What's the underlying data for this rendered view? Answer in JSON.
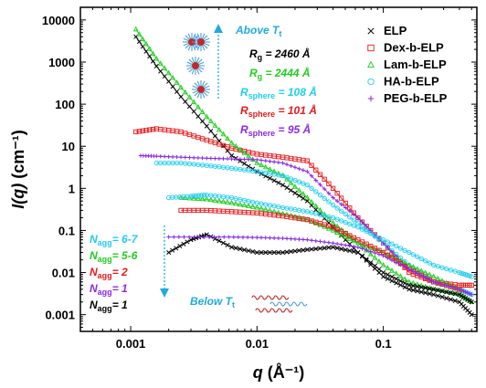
{
  "chart_data": {
    "type": "scatter",
    "xlabel": "q (Å⁻¹)",
    "ylabel": "I(q) (cm⁻¹)",
    "x_scale": "log",
    "y_scale": "log",
    "xlim": [
      0.0004,
      0.55
    ],
    "ylim": [
      0.0004,
      20000
    ],
    "x_ticks": [
      {
        "value": 0.001,
        "label": "0.001"
      },
      {
        "value": 0.01,
        "label": "0.01"
      },
      {
        "value": 0.1,
        "label": "0.1"
      }
    ],
    "y_ticks": [
      {
        "value": 0.001,
        "label": "0.001"
      },
      {
        "value": 0.01,
        "label": "0.01"
      },
      {
        "value": 0.1,
        "label": "0.1"
      },
      {
        "value": 1,
        "label": "1"
      },
      {
        "value": 10,
        "label": "10"
      },
      {
        "value": 100,
        "label": "100"
      },
      {
        "value": 1000,
        "label": "1000"
      },
      {
        "value": 10000,
        "label": "10000"
      }
    ],
    "grid": false,
    "legend_position": "top-right",
    "series": [
      {
        "name": "ELP",
        "marker": "x",
        "color": "#000000",
        "x": [
          0.0011,
          0.0016,
          0.0025,
          0.004,
          0.0063,
          0.01,
          0.016,
          0.025,
          0.04,
          0.063,
          0.1,
          0.16,
          0.25,
          0.4,
          0.5
        ],
        "y": [
          4000,
          800,
          150,
          30,
          6,
          2.5,
          1.2,
          0.5,
          0.12,
          0.03,
          0.008,
          0.004,
          0.003,
          0.002,
          0.001
        ]
      },
      {
        "name": "Dex-b-ELP",
        "marker": "square",
        "color": "#e41a1c",
        "x": [
          0.0011,
          0.0016,
          0.0025,
          0.004,
          0.0063,
          0.01,
          0.016,
          0.025,
          0.04,
          0.063,
          0.1,
          0.16,
          0.25,
          0.4,
          0.5
        ],
        "y": [
          22,
          26,
          22,
          14,
          9,
          6.5,
          5.5,
          4.5,
          1.0,
          0.2,
          0.05,
          0.01,
          0.006,
          0.005,
          0.005
        ]
      },
      {
        "name": "Lam-b-ELP",
        "marker": "triangle",
        "color": "#22cc22",
        "x": [
          0.0011,
          0.0016,
          0.0025,
          0.004,
          0.0063,
          0.01,
          0.016,
          0.025,
          0.04,
          0.063,
          0.1,
          0.16,
          0.25,
          0.4,
          0.5
        ],
        "y": [
          6000,
          1200,
          250,
          50,
          12,
          4,
          2,
          0.6,
          0.15,
          0.05,
          0.015,
          0.006,
          0.004,
          0.003,
          0.002
        ]
      },
      {
        "name": "HA-b-ELP",
        "marker": "circle",
        "color": "#22ccee",
        "x": [
          0.0016,
          0.0025,
          0.004,
          0.0063,
          0.01,
          0.016,
          0.025,
          0.04,
          0.063,
          0.1,
          0.16,
          0.25,
          0.4,
          0.5
        ],
        "y": [
          4,
          4,
          3.5,
          3,
          2.5,
          2,
          1.2,
          0.4,
          0.15,
          0.05,
          0.015,
          0.006,
          0.004,
          0.003
        ]
      },
      {
        "name": "PEG-b-ELP",
        "marker": "plus",
        "color": "#8a2be2",
        "x": [
          0.0012,
          0.0016,
          0.0025,
          0.004,
          0.0063,
          0.01,
          0.016,
          0.025,
          0.04,
          0.063,
          0.1,
          0.16,
          0.25,
          0.4,
          0.5
        ],
        "y": [
          6,
          5.8,
          5.5,
          5.2,
          5,
          4.8,
          4,
          2.5,
          0.6,
          0.2,
          0.05,
          0.012,
          0.006,
          0.004,
          0.003
        ]
      },
      {
        "name": "ELP (below Tt)",
        "marker": "x",
        "color": "#000000",
        "legend": false,
        "x": [
          0.002,
          0.003,
          0.004,
          0.0063,
          0.01,
          0.016,
          0.025,
          0.04,
          0.063,
          0.1,
          0.16,
          0.25,
          0.4,
          0.5
        ],
        "y": [
          0.03,
          0.06,
          0.08,
          0.04,
          0.03,
          0.03,
          0.035,
          0.04,
          0.03,
          0.01,
          0.005,
          0.004,
          0.003,
          0.002
        ]
      },
      {
        "name": "Lam-b-ELP (below Tt)",
        "marker": "triangle",
        "color": "#22cc22",
        "legend": false,
        "x": [
          0.0025,
          0.004,
          0.0063,
          0.01,
          0.016,
          0.025,
          0.04,
          0.063,
          0.1,
          0.16,
          0.25,
          0.4
        ],
        "y": [
          0.6,
          0.55,
          0.45,
          0.35,
          0.25,
          0.18,
          0.1,
          0.05,
          0.03,
          0.015,
          0.008,
          0.004
        ]
      },
      {
        "name": "HA-b-ELP (below Tt)",
        "marker": "circle",
        "color": "#22ccee",
        "legend": false,
        "x": [
          0.002,
          0.003,
          0.004,
          0.0063,
          0.01,
          0.016,
          0.025,
          0.04,
          0.063,
          0.1,
          0.16,
          0.25,
          0.4,
          0.5
        ],
        "y": [
          0.6,
          0.65,
          0.7,
          0.6,
          0.45,
          0.35,
          0.28,
          0.2,
          0.12,
          0.06,
          0.03,
          0.015,
          0.01,
          0.008
        ]
      },
      {
        "name": "Dex-b-ELP (below Tt)",
        "marker": "square",
        "color": "#e41a1c",
        "legend": false,
        "x": [
          0.0025,
          0.004,
          0.0063,
          0.01,
          0.016,
          0.025,
          0.04,
          0.063,
          0.1,
          0.16,
          0.25,
          0.4
        ],
        "y": [
          0.3,
          0.3,
          0.28,
          0.26,
          0.22,
          0.18,
          0.12,
          0.06,
          0.03,
          0.012,
          0.006,
          0.004
        ]
      },
      {
        "name": "PEG-b-ELP (below Tt)",
        "marker": "plus",
        "color": "#8a2be2",
        "legend": false,
        "x": [
          0.002,
          0.0035,
          0.006,
          0.01,
          0.016,
          0.025,
          0.04,
          0.063,
          0.1,
          0.16,
          0.25,
          0.4
        ],
        "y": [
          0.07,
          0.07,
          0.07,
          0.068,
          0.065,
          0.06,
          0.05,
          0.04,
          0.025,
          0.012,
          0.006,
          0.004
        ]
      }
    ],
    "annotations": {
      "above_tt": {
        "text": "Above ",
        "sub": "T",
        "subsub": "t",
        "color": "#22aadd"
      },
      "below_tt": {
        "text": "Below ",
        "sub": "T",
        "subsub": "t",
        "color": "#22aadd"
      },
      "rg_elp": {
        "label": "R",
        "sub": "g",
        "value": " = 2460 Å",
        "color": "#000000"
      },
      "rg_lam": {
        "label": "R",
        "sub": "g",
        "value": " = 2444 Å",
        "color": "#22cc22"
      },
      "rs_ha": {
        "label": "R",
        "sub": "sphere",
        "value": " = 108 Å",
        "color": "#22ccee"
      },
      "rs_dex": {
        "label": "R",
        "sub": "sphere",
        "value": " = 101 Å",
        "color": "#e41a1c"
      },
      "rs_peg": {
        "label": "R",
        "sub": "sphere",
        "value": " = 95 Å",
        "color": "#8a2be2"
      },
      "nagg_ha": {
        "label": "N",
        "sub": "agg",
        "value": "= 6-7",
        "color": "#22ccee"
      },
      "nagg_lam": {
        "label": "N",
        "sub": "agg",
        "value": "= 5-6",
        "color": "#22cc22"
      },
      "nagg_dex": {
        "label": "N",
        "sub": "agg",
        "value": "= 2",
        "color": "#e41a1c"
      },
      "nagg_peg": {
        "label": "N",
        "sub": "agg",
        "value": "= 1",
        "color": "#8a2be2"
      },
      "nagg_elp": {
        "label": "N",
        "sub": "agg",
        "value": "= 1",
        "color": "#000000"
      }
    }
  }
}
